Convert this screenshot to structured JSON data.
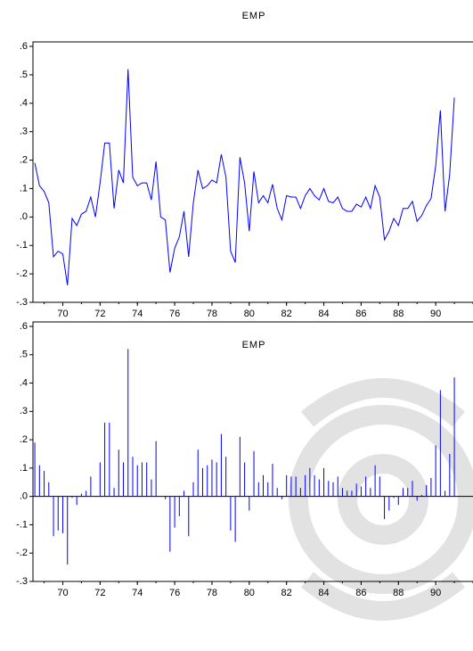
{
  "chart_data": [
    {
      "type": "line",
      "title": "EMP",
      "color": "#0000ff",
      "x": [
        1968.5,
        1968.75,
        1969,
        1969.25,
        1969.5,
        1969.75,
        1970,
        1970.25,
        1970.5,
        1970.75,
        1971,
        1971.25,
        1971.5,
        1971.75,
        1972,
        1972.25,
        1972.5,
        1972.75,
        1973,
        1973.25,
        1973.5,
        1973.75,
        1974,
        1974.25,
        1974.5,
        1974.75,
        1975,
        1975.25,
        1975.5,
        1975.75,
        1976,
        1976.25,
        1976.5,
        1976.75,
        1977,
        1977.25,
        1977.5,
        1977.75,
        1978,
        1978.25,
        1978.5,
        1978.75,
        1979,
        1979.25,
        1979.5,
        1979.75,
        1980,
        1980.25,
        1980.5,
        1980.75,
        1981,
        1981.25,
        1981.5,
        1981.75,
        1982,
        1982.25,
        1982.5,
        1982.75,
        1983,
        1983.25,
        1983.5,
        1983.75,
        1984,
        1984.25,
        1984.5,
        1984.75,
        1985,
        1985.25,
        1985.5,
        1985.75,
        1986,
        1986.25,
        1986.5,
        1986.75,
        1987,
        1987.25,
        1987.5,
        1987.75,
        1988,
        1988.25,
        1988.5,
        1988.75,
        1989,
        1989.25,
        1989.5,
        1989.75,
        1990,
        1990.25,
        1990.5,
        1990.75,
        1991
      ],
      "values": [
        0.19,
        0.11,
        0.09,
        0.05,
        -0.14,
        -0.12,
        -0.13,
        -0.24,
        -0.005,
        -0.03,
        0.01,
        0.02,
        0.07,
        0,
        0.12,
        0.26,
        0.26,
        0.03,
        0.165,
        0.12,
        0.52,
        0.14,
        0.11,
        0.12,
        0.12,
        0.06,
        0.195,
        0,
        -0.01,
        -0.195,
        -0.11,
        -0.07,
        0.02,
        -0.14,
        0.05,
        0.165,
        0.1,
        0.11,
        0.13,
        0.12,
        0.22,
        0.14,
        -0.12,
        -0.16,
        0.21,
        0.12,
        -0.05,
        0.16,
        0.05,
        0.075,
        0.05,
        0.115,
        0.03,
        -0.01,
        0.075,
        0.07,
        0.07,
        0.03,
        0.075,
        0.1,
        0.075,
        0.06,
        0.1,
        0.055,
        0.05,
        0.07,
        0.03,
        0.02,
        0.02,
        0.045,
        0.035,
        0.07,
        0.03,
        0.11,
        0.07,
        -0.08,
        -0.05,
        -0.005,
        -0.03,
        0.03,
        0.03,
        0.055,
        -0.015,
        0.005,
        0.04,
        0.065,
        0.18,
        0.375,
        0.02,
        0.15,
        0.42
      ],
      "xlim": [
        1968.4,
        1992
      ],
      "xticks": [
        {
          "value": 1970,
          "label": "70"
        },
        {
          "value": 1972,
          "label": "72"
        },
        {
          "value": 1974,
          "label": "74"
        },
        {
          "value": 1976,
          "label": "76"
        },
        {
          "value": 1978,
          "label": "78"
        },
        {
          "value": 1980,
          "label": "80"
        },
        {
          "value": 1982,
          "label": "82"
        },
        {
          "value": 1984,
          "label": "84"
        },
        {
          "value": 1986,
          "label": "86"
        },
        {
          "value": 1988,
          "label": "88"
        },
        {
          "value": 1990,
          "label": "90"
        }
      ],
      "ylim": [
        -0.3,
        0.6
      ],
      "yticks": [
        {
          "value": -0.3,
          "label": "-.3"
        },
        {
          "value": -0.2,
          "label": "-.2"
        },
        {
          "value": -0.1,
          "label": "-.1"
        },
        {
          "value": 0,
          "label": ".0"
        },
        {
          "value": 0.1,
          "label": ".1"
        },
        {
          "value": 0.2,
          "label": ".2"
        },
        {
          "value": 0.3,
          "label": ".3"
        },
        {
          "value": 0.4,
          "label": ".4"
        },
        {
          "value": 0.5,
          "label": ".5"
        },
        {
          "value": 0.6,
          "label": ".6"
        }
      ]
    },
    {
      "type": "bar",
      "title": "EMP",
      "color": "#0000ff",
      "x": [
        1968.5,
        1968.75,
        1969,
        1969.25,
        1969.5,
        1969.75,
        1970,
        1970.25,
        1970.5,
        1970.75,
        1971,
        1971.25,
        1971.5,
        1971.75,
        1972,
        1972.25,
        1972.5,
        1972.75,
        1973,
        1973.25,
        1973.5,
        1973.75,
        1974,
        1974.25,
        1974.5,
        1974.75,
        1975,
        1975.25,
        1975.5,
        1975.75,
        1976,
        1976.25,
        1976.5,
        1976.75,
        1977,
        1977.25,
        1977.5,
        1977.75,
        1978,
        1978.25,
        1978.5,
        1978.75,
        1979,
        1979.25,
        1979.5,
        1979.75,
        1980,
        1980.25,
        1980.5,
        1980.75,
        1981,
        1981.25,
        1981.5,
        1981.75,
        1982,
        1982.25,
        1982.5,
        1982.75,
        1983,
        1983.25,
        1983.5,
        1983.75,
        1984,
        1984.25,
        1984.5,
        1984.75,
        1985,
        1985.25,
        1985.5,
        1985.75,
        1986,
        1986.25,
        1986.5,
        1986.75,
        1987,
        1987.25,
        1987.5,
        1987.75,
        1988,
        1988.25,
        1988.5,
        1988.75,
        1989,
        1989.25,
        1989.5,
        1989.75,
        1990,
        1990.25,
        1990.5,
        1990.75,
        1991
      ],
      "values": [
        0.19,
        0.11,
        0.09,
        0.05,
        -0.14,
        -0.12,
        -0.13,
        -0.24,
        -0.005,
        -0.03,
        0.01,
        0.02,
        0.07,
        0,
        0.12,
        0.26,
        0.26,
        0.03,
        0.165,
        0.12,
        0.52,
        0.14,
        0.11,
        0.12,
        0.12,
        0.06,
        0.195,
        0,
        -0.01,
        -0.195,
        -0.11,
        -0.07,
        0.02,
        -0.14,
        0.05,
        0.165,
        0.1,
        0.11,
        0.13,
        0.12,
        0.22,
        0.14,
        -0.12,
        -0.16,
        0.21,
        0.12,
        -0.05,
        0.16,
        0.05,
        0.075,
        0.05,
        0.115,
        0.03,
        -0.01,
        0.075,
        0.07,
        0.07,
        0.03,
        0.075,
        0.1,
        0.075,
        0.06,
        0.1,
        0.055,
        0.05,
        0.07,
        0.03,
        0.02,
        0.02,
        0.045,
        0.035,
        0.07,
        0.03,
        0.11,
        0.07,
        -0.08,
        -0.05,
        -0.005,
        -0.03,
        0.03,
        0.03,
        0.055,
        -0.015,
        0.005,
        0.04,
        0.065,
        0.18,
        0.375,
        0.02,
        0.15,
        0.42
      ],
      "xlim": [
        1968.4,
        1992
      ],
      "xticks": [
        {
          "value": 1970,
          "label": "70"
        },
        {
          "value": 1972,
          "label": "72"
        },
        {
          "value": 1974,
          "label": "74"
        },
        {
          "value": 1976,
          "label": "76"
        },
        {
          "value": 1978,
          "label": "78"
        },
        {
          "value": 1980,
          "label": "80"
        },
        {
          "value": 1982,
          "label": "82"
        },
        {
          "value": 1984,
          "label": "84"
        },
        {
          "value": 1986,
          "label": "86"
        },
        {
          "value": 1988,
          "label": "88"
        },
        {
          "value": 1990,
          "label": "90"
        }
      ],
      "ylim": [
        -0.3,
        0.6
      ],
      "yticks": [
        {
          "value": -0.3,
          "label": "-.3"
        },
        {
          "value": -0.2,
          "label": "-.2"
        },
        {
          "value": -0.1,
          "label": "-.1"
        },
        {
          "value": 0,
          "label": ".0"
        },
        {
          "value": 0.1,
          "label": ".1"
        },
        {
          "value": 0.2,
          "label": ".2"
        },
        {
          "value": 0.3,
          "label": ".3"
        },
        {
          "value": 0.4,
          "label": ".4"
        },
        {
          "value": 0.5,
          "label": ".5"
        },
        {
          "value": 0.6,
          "label": ".6"
        }
      ]
    }
  ]
}
